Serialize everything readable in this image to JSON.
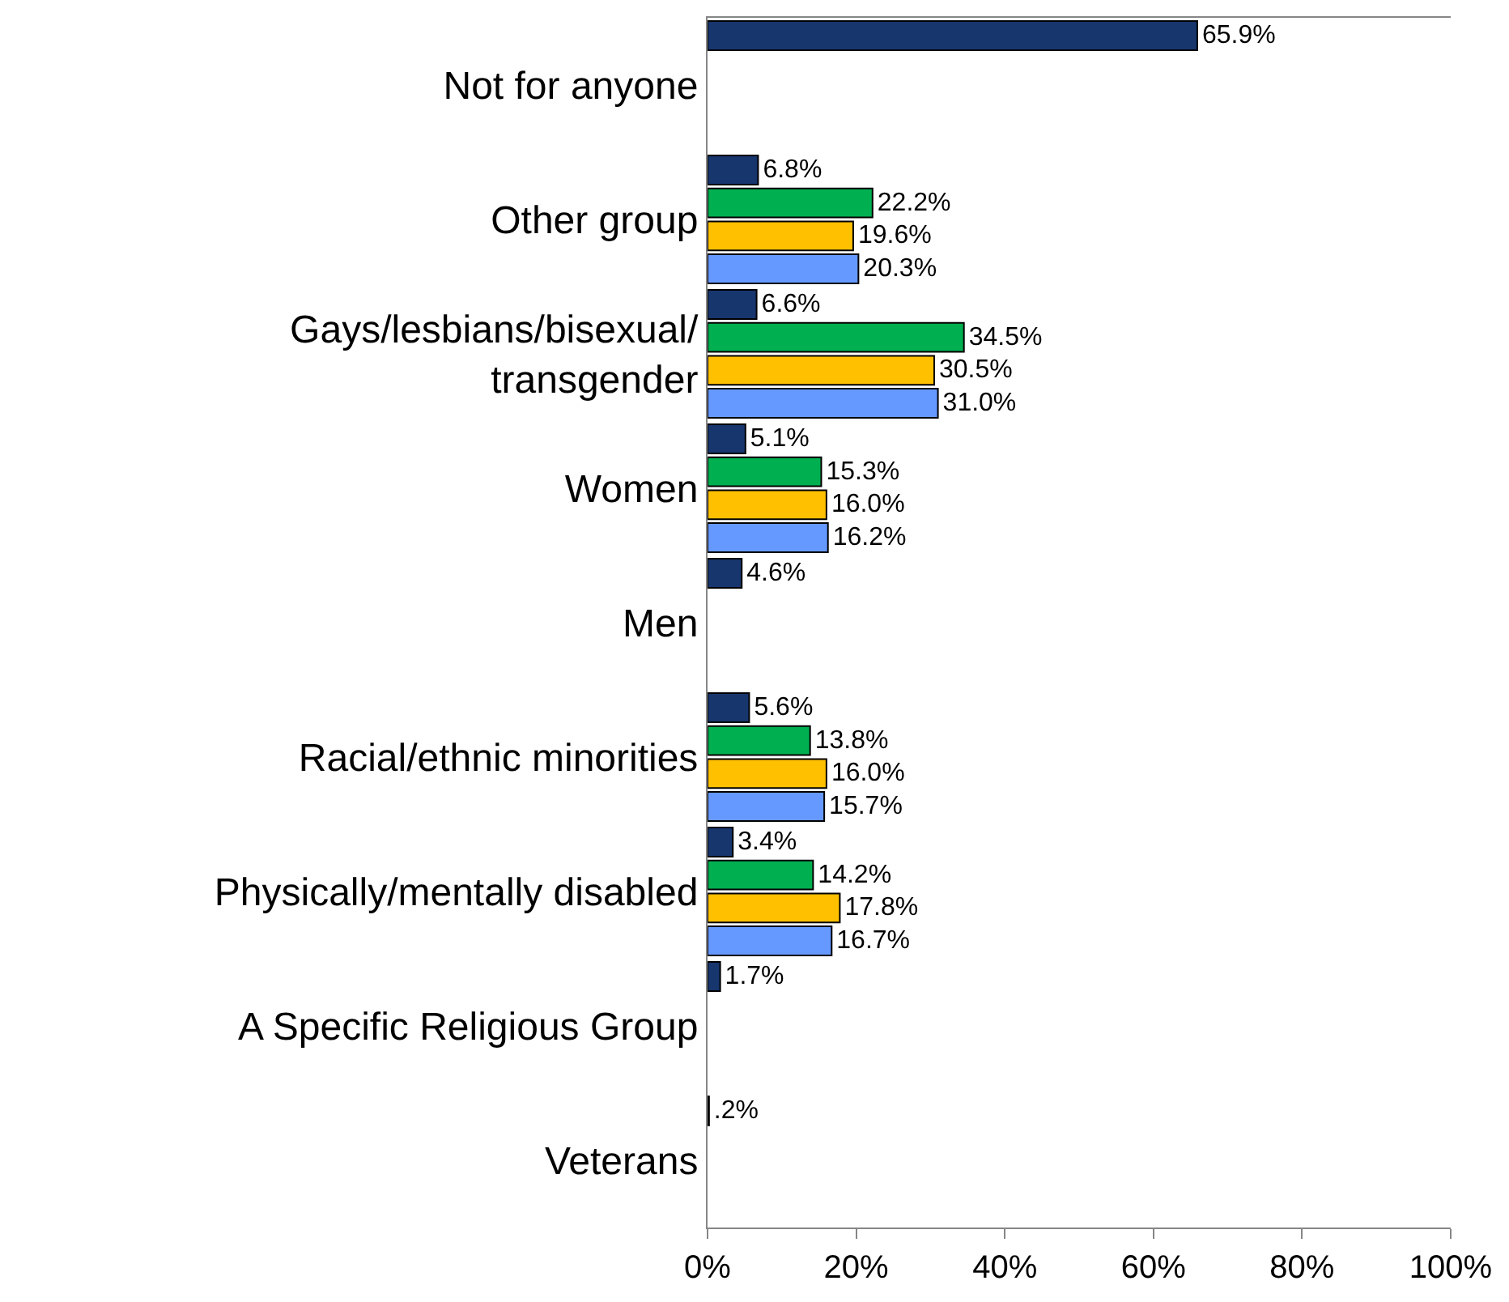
{
  "chart_data": {
    "type": "bar",
    "orientation": "horizontal",
    "categories": [
      "Not for anyone",
      "Other group",
      "Gays/lesbians/bisexual/\ntransgender",
      "Women",
      "Men",
      "Racial/ethnic minorities",
      "Physically/mentally disabled",
      "A Specific Religious Group",
      "Veterans"
    ],
    "series": [
      {
        "color": "#17366e",
        "values": [
          65.9,
          6.8,
          6.6,
          5.1,
          4.6,
          5.6,
          3.4,
          1.7,
          0.2
        ],
        "value_labels": [
          "65.9%",
          "6.8%",
          "6.6%",
          "5.1%",
          "4.6%",
          "5.6%",
          "3.4%",
          "1.7%",
          ".2%"
        ]
      },
      {
        "color": "#00b050",
        "values": [
          null,
          22.2,
          34.5,
          15.3,
          null,
          13.8,
          14.2,
          null,
          null
        ],
        "value_labels": [
          null,
          "22.2%",
          "34.5%",
          "15.3%",
          null,
          "13.8%",
          "14.2%",
          null,
          null
        ]
      },
      {
        "color": "#ffc000",
        "values": [
          null,
          19.6,
          30.5,
          16.0,
          null,
          16.0,
          17.8,
          null,
          null
        ],
        "value_labels": [
          null,
          "19.6%",
          "30.5%",
          "16.0%",
          null,
          "16.0%",
          "17.8%",
          null,
          null
        ]
      },
      {
        "color": "#6699ff",
        "values": [
          null,
          20.3,
          31.0,
          16.2,
          null,
          15.7,
          16.7,
          null,
          null
        ],
        "value_labels": [
          null,
          "20.3%",
          "31.0%",
          "16.2%",
          null,
          "15.7%",
          "16.7%",
          null,
          null
        ]
      }
    ],
    "xlim": [
      0,
      100
    ],
    "xticks": [
      {
        "value": 0,
        "label": "0%"
      },
      {
        "value": 20,
        "label": "20%"
      },
      {
        "value": 40,
        "label": "40%"
      },
      {
        "value": 60,
        "label": "60%"
      },
      {
        "value": 80,
        "label": "80%"
      },
      {
        "value": 100,
        "label": "100%"
      }
    ]
  }
}
